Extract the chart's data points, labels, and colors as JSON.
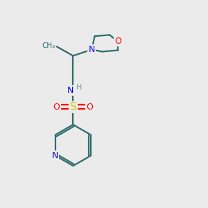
{
  "bg_color": "#ebebeb",
  "bond_color": "#2d6b6b",
  "N_color": "#0000ee",
  "O_color": "#ff0000",
  "S_color": "#cccc00",
  "H_color": "#7a9a9a",
  "line_width": 1.6,
  "fig_size": [
    3.0,
    3.0
  ],
  "dpi": 100,
  "xlim": [
    0,
    10
  ],
  "ylim": [
    0,
    10
  ]
}
